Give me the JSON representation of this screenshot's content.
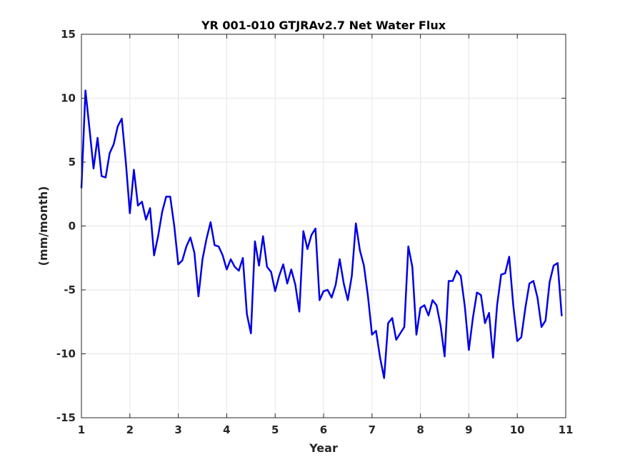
{
  "chart_data": {
    "type": "line",
    "title": "YR 001-010 GTJRAv2.7 Net Water Flux",
    "xlabel": "Year",
    "ylabel": "(mm/month)",
    "xlim": [
      1,
      11
    ],
    "ylim": [
      -15,
      15
    ],
    "xticks": [
      1,
      2,
      3,
      4,
      5,
      6,
      7,
      8,
      9,
      10,
      11
    ],
    "yticks": [
      -15,
      -10,
      -5,
      0,
      5,
      10,
      15
    ],
    "xtick_labels": [
      "1",
      "2",
      "3",
      "4",
      "5",
      "6",
      "7",
      "8",
      "9",
      "10",
      "11"
    ],
    "ytick_labels": [
      "-15",
      "-10",
      "-5",
      "0",
      "5",
      "10",
      "15"
    ],
    "grid": true,
    "line_color": "#0000e6",
    "series": [
      {
        "x": [
          1.0,
          1.083,
          1.167,
          1.25,
          1.333,
          1.417,
          1.5,
          1.583,
          1.667,
          1.75,
          1.833,
          1.917,
          2.0,
          2.083,
          2.167,
          2.25,
          2.333,
          2.417,
          2.5,
          2.583,
          2.667,
          2.75,
          2.833,
          2.917,
          3.0,
          3.083,
          3.167,
          3.25,
          3.333,
          3.417,
          3.5,
          3.583,
          3.667,
          3.75,
          3.833,
          3.917,
          4.0,
          4.083,
          4.167,
          4.25,
          4.333,
          4.417,
          4.5,
          4.583,
          4.667,
          4.75,
          4.833,
          4.917,
          5.0,
          5.083,
          5.167,
          5.25,
          5.333,
          5.417,
          5.5,
          5.583,
          5.667,
          5.75,
          5.833,
          5.917,
          6.0,
          6.083,
          6.167,
          6.25,
          6.333,
          6.417,
          6.5,
          6.583,
          6.667,
          6.75,
          6.833,
          6.917,
          7.0,
          7.083,
          7.167,
          7.25,
          7.333,
          7.417,
          7.5,
          7.583,
          7.667,
          7.75,
          7.833,
          7.917,
          8.0,
          8.083,
          8.167,
          8.25,
          8.333,
          8.417,
          8.5,
          8.583,
          8.667,
          8.75,
          8.833,
          8.917,
          9.0,
          9.083,
          9.167,
          9.25,
          9.333,
          9.417,
          9.5,
          9.583,
          9.667,
          9.75,
          9.833,
          9.917,
          10.0,
          10.083,
          10.167,
          10.25,
          10.333,
          10.417,
          10.5,
          10.583,
          10.667,
          10.75,
          10.833,
          10.917
        ],
        "values": [
          3.0,
          10.6,
          7.6,
          4.5,
          6.9,
          3.9,
          3.8,
          5.7,
          6.4,
          7.8,
          8.4,
          5.0,
          1.0,
          4.4,
          1.6,
          1.9,
          0.5,
          1.4,
          -2.3,
          -0.8,
          1.1,
          2.3,
          2.3,
          0.0,
          -3.0,
          -2.7,
          -1.6,
          -0.9,
          -2.1,
          -5.5,
          -2.6,
          -1.0,
          0.3,
          -1.5,
          -1.6,
          -2.3,
          -3.4,
          -2.6,
          -3.2,
          -3.5,
          -2.5,
          -6.9,
          -8.4,
          -1.2,
          -3.1,
          -0.8,
          -3.2,
          -3.6,
          -5.1,
          -3.9,
          -3.0,
          -4.5,
          -3.4,
          -4.6,
          -6.7,
          -0.4,
          -1.8,
          -0.7,
          -0.2,
          -5.8,
          -5.1,
          -5.0,
          -5.6,
          -4.6,
          -2.6,
          -4.5,
          -5.8,
          -3.9,
          0.2,
          -1.9,
          -3.1,
          -5.5,
          -8.5,
          -8.2,
          -10.3,
          -11.9,
          -7.6,
          -7.2,
          -8.9,
          -8.4,
          -7.9,
          -1.6,
          -3.2,
          -8.5,
          -6.4,
          -6.2,
          -7.0,
          -5.8,
          -6.2,
          -7.8,
          -10.2,
          -4.3,
          -4.3,
          -3.5,
          -3.9,
          -6.3,
          -9.7,
          -7.2,
          -5.2,
          -5.4,
          -7.6,
          -6.8,
          -10.3,
          -6.2,
          -3.8,
          -3.7,
          -2.4,
          -6.2,
          -9.0,
          -8.7,
          -6.4,
          -4.5,
          -4.3,
          -5.6,
          -7.9,
          -7.4,
          -4.4,
          -3.1,
          -2.9,
          -7.0
        ]
      }
    ]
  }
}
